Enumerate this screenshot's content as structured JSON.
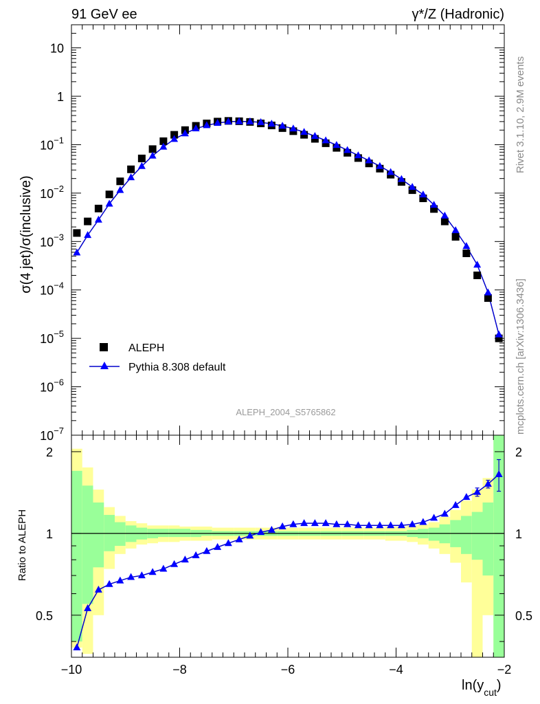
{
  "header": {
    "left": "91 GeV ee",
    "right": "γ*/Z (Hadronic)"
  },
  "side_labels": {
    "rivet": "Rivet 3.1.10,  2.9M events",
    "mcplots": "mcplots.cern.ch [arXiv:1306.3436]"
  },
  "watermark": "ALEPH_2004_S5765862",
  "axes": {
    "main_ylabel": "σ(4 jet)/σ(inclusive)",
    "ratio_ylabel": "Ratio to ALEPH",
    "xlabel_main": "ln(y",
    "xlabel_sub": "cut",
    "xlabel_close": ")"
  },
  "legend": {
    "data": "ALEPH",
    "mc": "Pythia 8.308 default"
  },
  "ticks": {
    "x": [
      "−10",
      "−8",
      "−6",
      "−4",
      "−2"
    ],
    "main_y": [
      "10",
      "1",
      "10",
      "10",
      "10",
      "10",
      "10",
      "10",
      "10"
    ],
    "main_y_exp": [
      "",
      "",
      "−1",
      "−2",
      "−3",
      "−4",
      "−5",
      "−6",
      "−7"
    ],
    "ratio_y": [
      "0.5",
      "1",
      "2"
    ]
  },
  "colors": {
    "data": "#000000",
    "mc": "#0000ff",
    "mc_line": "#0000cc",
    "band_inner": "#99ff99",
    "band_outer": "#ffff99"
  },
  "chart_data": {
    "type": "scatter",
    "xlim": [
      -10,
      -2
    ],
    "main_ylim": [
      1e-07,
      30
    ],
    "main_yscale": "log",
    "ratio_ylim": [
      0.35,
      2.3
    ],
    "ratio_yscale": "log",
    "series": [
      {
        "name": "ALEPH",
        "x": [
          -9.9,
          -9.7,
          -9.5,
          -9.3,
          -9.1,
          -8.9,
          -8.7,
          -8.5,
          -8.3,
          -8.1,
          -7.9,
          -7.7,
          -7.5,
          -7.3,
          -7.1,
          -6.9,
          -6.7,
          -6.5,
          -6.3,
          -6.1,
          -5.9,
          -5.7,
          -5.5,
          -5.3,
          -5.1,
          -4.9,
          -4.7,
          -4.5,
          -4.3,
          -4.1,
          -3.9,
          -3.7,
          -3.5,
          -3.3,
          -3.1,
          -2.9,
          -2.7,
          -2.5,
          -2.3,
          -2.1
        ],
        "values": [
          0.0015,
          0.0026,
          0.0048,
          0.0094,
          0.0175,
          0.031,
          0.052,
          0.081,
          0.118,
          0.16,
          0.2,
          0.245,
          0.275,
          0.3,
          0.31,
          0.305,
          0.295,
          0.275,
          0.25,
          0.22,
          0.19,
          0.16,
          0.132,
          0.107,
          0.086,
          0.068,
          0.053,
          0.041,
          0.032,
          0.024,
          0.017,
          0.0115,
          0.0078,
          0.0047,
          0.0026,
          0.00125,
          0.00057,
          0.0002,
          6.8e-05,
          1e-05
        ]
      },
      {
        "name": "Pythia 8.308 default",
        "x": [
          -9.9,
          -9.7,
          -9.5,
          -9.3,
          -9.1,
          -8.9,
          -8.7,
          -8.5,
          -8.3,
          -8.1,
          -7.9,
          -7.7,
          -7.5,
          -7.3,
          -7.1,
          -6.9,
          -6.7,
          -6.5,
          -6.3,
          -6.1,
          -5.9,
          -5.7,
          -5.5,
          -5.3,
          -5.1,
          -4.9,
          -4.7,
          -4.5,
          -4.3,
          -4.1,
          -3.9,
          -3.7,
          -3.5,
          -3.3,
          -3.1,
          -2.9,
          -2.7,
          -2.5,
          -2.3,
          -2.1
        ],
        "values": [
          0.00059,
          0.00135,
          0.0028,
          0.006,
          0.0115,
          0.021,
          0.036,
          0.059,
          0.09,
          0.13,
          0.17,
          0.215,
          0.25,
          0.28,
          0.3,
          0.302,
          0.3,
          0.29,
          0.27,
          0.244,
          0.214,
          0.182,
          0.15,
          0.122,
          0.098,
          0.077,
          0.06,
          0.047,
          0.036,
          0.027,
          0.0194,
          0.0133,
          0.0093,
          0.0057,
          0.0034,
          0.0017,
          0.0008,
          0.00033,
          8.8e-05,
          1.2e-05
        ]
      }
    ],
    "ratio": {
      "x": [
        -9.9,
        -9.7,
        -9.5,
        -9.3,
        -9.1,
        -8.9,
        -8.7,
        -8.5,
        -8.3,
        -8.1,
        -7.9,
        -7.7,
        -7.5,
        -7.3,
        -7.1,
        -6.9,
        -6.7,
        -6.5,
        -6.3,
        -6.1,
        -5.9,
        -5.7,
        -5.5,
        -5.3,
        -5.1,
        -4.9,
        -4.7,
        -4.5,
        -4.3,
        -4.1,
        -3.9,
        -3.7,
        -3.5,
        -3.3,
        -3.1,
        -2.9,
        -2.7,
        -2.5,
        -2.3,
        -2.1
      ],
      "values": [
        0.38,
        0.53,
        0.62,
        0.65,
        0.67,
        0.69,
        0.7,
        0.72,
        0.74,
        0.77,
        0.8,
        0.83,
        0.86,
        0.89,
        0.92,
        0.95,
        0.98,
        1.01,
        1.03,
        1.06,
        1.08,
        1.09,
        1.09,
        1.09,
        1.08,
        1.08,
        1.07,
        1.07,
        1.07,
        1.07,
        1.07,
        1.08,
        1.1,
        1.14,
        1.18,
        1.27,
        1.36,
        1.42,
        1.52,
        1.65
      ],
      "errors": [
        0,
        0,
        0,
        0,
        0,
        0,
        0,
        0,
        0,
        0,
        0,
        0,
        0,
        0,
        0,
        0,
        0,
        0,
        0,
        0,
        0,
        0,
        0,
        0,
        0,
        0,
        0,
        0,
        0,
        0,
        0,
        0,
        0,
        0,
        0,
        0,
        0,
        0.05,
        0.05,
        0.22
      ],
      "band_edges": [
        -10,
        -9.8,
        -9.6,
        -9.4,
        -9.2,
        -9,
        -8.8,
        -8.6,
        -8.4,
        -8.2,
        -8,
        -7.8,
        -7.6,
        -7.4,
        -7.2,
        -7,
        -6.8,
        -6.6,
        -6.4,
        -6.2,
        -6,
        -5.8,
        -5.6,
        -5.4,
        -5.2,
        -5,
        -4.8,
        -4.6,
        -4.4,
        -4.2,
        -4,
        -3.8,
        -3.6,
        -3.4,
        -3.2,
        -3,
        -2.8,
        -2.6,
        -2.4,
        -2.2,
        -2
      ],
      "inner_hi": [
        1.7,
        1.5,
        1.3,
        1.17,
        1.1,
        1.07,
        1.05,
        1.04,
        1.04,
        1.04,
        1.04,
        1.03,
        1.03,
        1.02,
        1.02,
        1.02,
        1.02,
        1.02,
        1.02,
        1.02,
        1.02,
        1.02,
        1.02,
        1.02,
        1.02,
        1.02,
        1.02,
        1.02,
        1.02,
        1.02,
        1.02,
        1.03,
        1.04,
        1.05,
        1.08,
        1.12,
        1.16,
        1.2,
        1.3,
        2.3
      ],
      "inner_lo": [
        0.4,
        0.55,
        0.75,
        0.86,
        0.9,
        0.93,
        0.95,
        0.96,
        0.97,
        0.97,
        0.97,
        0.97,
        0.98,
        0.98,
        0.98,
        0.98,
        0.98,
        0.98,
        0.98,
        0.98,
        0.98,
        0.98,
        0.98,
        0.98,
        0.98,
        0.98,
        0.98,
        0.98,
        0.98,
        0.98,
        0.98,
        0.97,
        0.96,
        0.94,
        0.92,
        0.89,
        0.84,
        0.8,
        0.7,
        0.35
      ],
      "outer_hi": [
        2.05,
        1.75,
        1.45,
        1.25,
        1.16,
        1.11,
        1.09,
        1.07,
        1.07,
        1.07,
        1.06,
        1.06,
        1.06,
        1.05,
        1.05,
        1.05,
        1.05,
        1.05,
        1.05,
        1.05,
        1.05,
        1.05,
        1.05,
        1.05,
        1.05,
        1.05,
        1.05,
        1.05,
        1.05,
        1.06,
        1.06,
        1.07,
        1.08,
        1.1,
        1.15,
        1.22,
        1.32,
        1.45,
        1.6,
        2.3
      ],
      "outer_lo": [
        0.38,
        0.36,
        0.5,
        0.74,
        0.84,
        0.88,
        0.91,
        0.92,
        0.93,
        0.93,
        0.94,
        0.94,
        0.94,
        0.95,
        0.95,
        0.95,
        0.95,
        0.95,
        0.95,
        0.95,
        0.95,
        0.95,
        0.95,
        0.95,
        0.95,
        0.95,
        0.95,
        0.95,
        0.95,
        0.94,
        0.94,
        0.93,
        0.91,
        0.88,
        0.84,
        0.78,
        0.66,
        0.35,
        0.5,
        0.35
      ]
    }
  }
}
